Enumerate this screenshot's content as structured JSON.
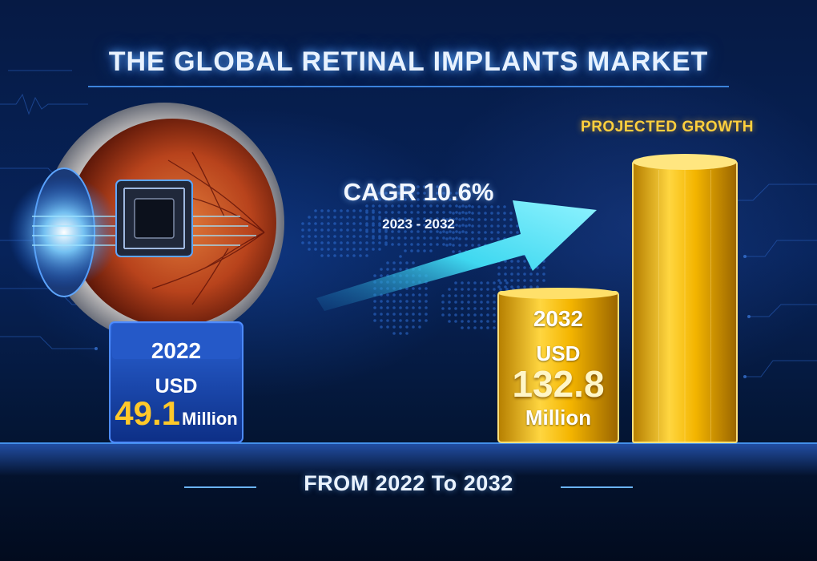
{
  "title": "THE GLOBAL RETINAL IMPLANTS MARKET",
  "projected_label": "PROJECTED GROWTH",
  "cagr": {
    "label": "CAGR 10.6%",
    "years": "2023 - 2032"
  },
  "footer": "FROM 2022 To 2032",
  "start": {
    "year": "2022",
    "currency": "USD",
    "value": "49.1",
    "unit": "Million"
  },
  "end": {
    "year": "2032",
    "currency": "USD",
    "value": "132.8",
    "unit": "Million"
  },
  "icons": [
    "eye-icon",
    "microchip-icon",
    "world-map-icon",
    "growth-arrow-icon"
  ],
  "colors": {
    "accent_blue": "#1d4fb8",
    "gold": "#f0b300",
    "arrow_cyan": "#3fd8f0"
  },
  "chart_data": {
    "type": "bar",
    "title": "THE GLOBAL RETINAL IMPLANTS MARKET",
    "categories": [
      "2022",
      "2032"
    ],
    "values": [
      49.1,
      132.8
    ],
    "unit": "USD Million",
    "cagr_percent": 10.6,
    "cagr_period": "2023 - 2032"
  }
}
